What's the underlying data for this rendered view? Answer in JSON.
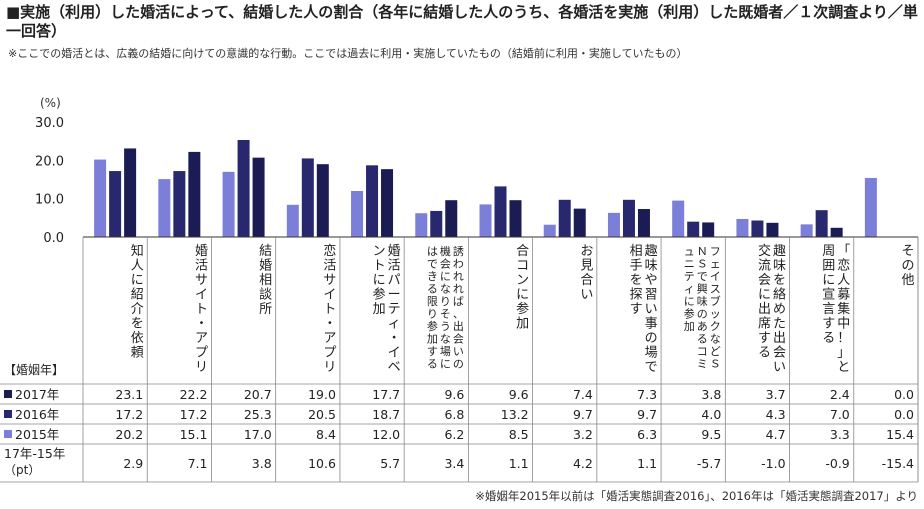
{
  "title": "■実施（利用）した婚活によって、結婚した人の割合（各年に結婚した人のうち、各婚活を実施（利用）した既婚者／１次調査より／単一回答）",
  "note": "※ここでの婚活とは、広義の結婚に向けての意識的な行動。ここでは過去に利用・実施していたもの（結婚前に利用・実施していたもの）",
  "footer": "※婚姻年2015年以前は「婚活実態調査2016」、2016年は「婚活実態調査2017」より",
  "chart_data": {
    "type": "bar",
    "unit_label": "(%)",
    "ylim": [
      0,
      30
    ],
    "yticks": [
      "30.0",
      "20.0",
      "10.0",
      "0.0"
    ],
    "categories": [
      "知人に紹介を依頼",
      "婚活サイト・アプリ",
      "結婚相談所",
      "恋活サイト・アプリ",
      "婚活パーティ・イベントに参加",
      "誘われれば、出会いの機会になりそうな場にはできる限り参加する",
      "合コンに参加",
      "お見合い",
      "趣味や習い事の場で相手を探す",
      "フェイスブックなどＳＮＳで興味のあるコミュニティに参加",
      "趣味を絡めた出会い交流会に出席する",
      "「恋人募集中！」と周囲に宣言する",
      "その他"
    ],
    "series": [
      {
        "name": "2015年",
        "color": "#7b7fd8",
        "values": [
          20.2,
          15.1,
          17.0,
          8.4,
          12.0,
          6.2,
          8.5,
          3.2,
          6.3,
          9.5,
          4.7,
          3.3,
          15.4
        ],
        "labels": [
          "20.2",
          "15.1",
          "17.0",
          "8.4",
          "12.0",
          "6.2",
          "8.5",
          "3.2",
          "6.3",
          "9.5",
          "4.7",
          "3.3",
          "15.4"
        ]
      },
      {
        "name": "2016年",
        "color": "#28286e",
        "values": [
          17.2,
          17.2,
          25.3,
          20.5,
          18.7,
          6.8,
          13.2,
          9.7,
          9.7,
          4.0,
          4.3,
          7.0,
          0.0
        ],
        "labels": [
          "17.2",
          "17.2",
          "25.3",
          "20.5",
          "18.7",
          "6.8",
          "13.2",
          "9.7",
          "9.7",
          "4.0",
          "4.3",
          "7.0",
          "0.0"
        ]
      },
      {
        "name": "2017年",
        "color": "#1b1c54",
        "values": [
          23.1,
          22.2,
          20.7,
          19.0,
          17.7,
          9.6,
          9.6,
          7.4,
          7.3,
          3.8,
          3.7,
          2.4,
          0.0
        ],
        "labels": [
          "23.1",
          "22.2",
          "20.7",
          "19.0",
          "17.7",
          "9.6",
          "9.6",
          "7.4",
          "7.3",
          "3.8",
          "3.7",
          "2.4",
          "0.0"
        ]
      }
    ],
    "table": {
      "header_label": "【婚姻年】",
      "rows": [
        {
          "label": "2017年",
          "series": "2017年",
          "marker_color": "#1b1c54"
        },
        {
          "label": "2016年",
          "series": "2016年",
          "marker_color": "#28286e"
        },
        {
          "label": "2015年",
          "series": "2015年",
          "marker_color": "#7b7fd8"
        }
      ],
      "diff_label_1": "17年-15年",
      "diff_label_2": "（pt）",
      "diff_values": [
        "2.9",
        "7.1",
        "3.8",
        "10.6",
        "5.7",
        "3.4",
        "1.1",
        "4.2",
        "1.1",
        "-5.7",
        "-1.0",
        "-0.9",
        "-15.4"
      ]
    }
  }
}
